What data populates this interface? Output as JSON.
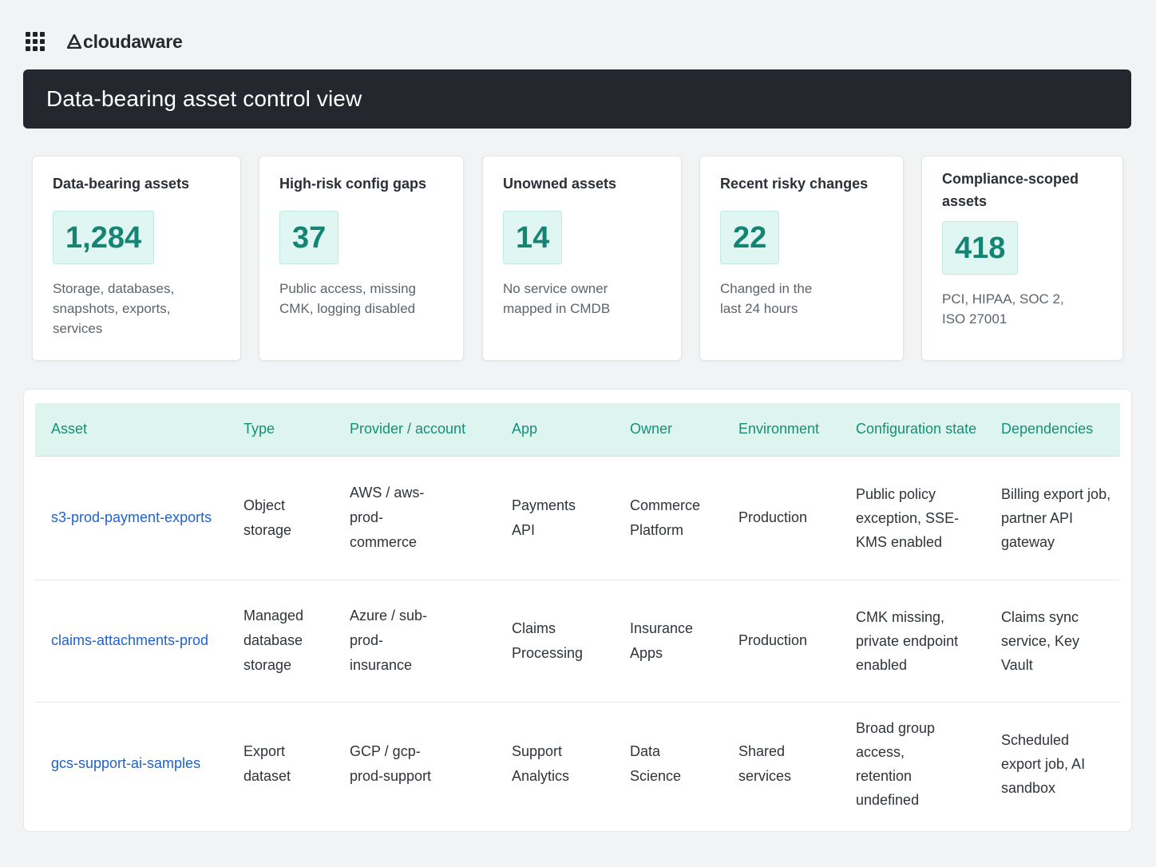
{
  "brand": {
    "name": "cloudaware"
  },
  "page_title": "Data-bearing asset control view",
  "metrics": [
    {
      "label": "Data-bearing assets",
      "value": "1,284",
      "desc": "Storage, databases, snapshots, exports, services"
    },
    {
      "label": "High-risk config gaps",
      "value": "37",
      "desc": "Public access, missing CMK, logging disabled"
    },
    {
      "label": "Unowned assets",
      "value": "14",
      "desc": "No service owner mapped in CMDB"
    },
    {
      "label": "Recent risky changes",
      "value": "22",
      "desc": "Changed in the last 24 hours"
    },
    {
      "label": "Compliance-scoped assets",
      "value": "418",
      "desc": "PCI, HIPAA, SOC 2, ISO 27001"
    }
  ],
  "table": {
    "columns": [
      "Asset",
      "Type",
      "Provider / account",
      "App",
      "Owner",
      "Environment",
      "Configuration state",
      "Dependencies"
    ],
    "rows": [
      {
        "asset": "s3-prod-payment-exports",
        "type": "Object storage",
        "provider": "AWS / aws-prod-commerce",
        "app": "Payments API",
        "owner": "Commerce Platform",
        "environment": "Production",
        "config": "Public policy exception, SSE-KMS enabled",
        "dependencies": "Billing export job, partner API gateway"
      },
      {
        "asset": "claims-attachments-prod",
        "type": "Managed database storage",
        "provider": "Azure / sub-prod-insurance",
        "app": "Claims Processing",
        "owner": "Insurance Apps",
        "environment": "Production",
        "config": "CMK missing, private endpoint enabled",
        "dependencies": "Claims sync service, Key Vault"
      },
      {
        "asset": "gcs-support-ai-samples",
        "type": "Export dataset",
        "provider": "GCP / gcp-prod-support",
        "app": "Support Analytics",
        "owner": "Data Science",
        "environment": "Shared services",
        "config": "Broad group access, retention undefined",
        "dependencies": "Scheduled export job, AI sandbox"
      }
    ]
  },
  "colors": {
    "accent_teal": "#138572",
    "metric_bg": "#e0f6f3",
    "header_bg": "#def5ef",
    "link_blue": "#1f63c7",
    "title_bar_bg": "#24282e"
  },
  "icons": {
    "app_switcher": "grid-icon",
    "logo": "cloudaware-logo-icon"
  }
}
